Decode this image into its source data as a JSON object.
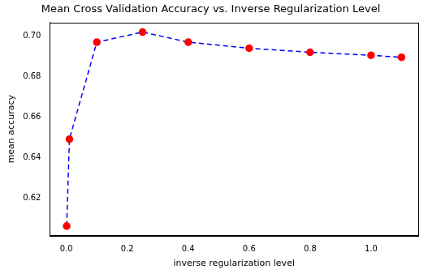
{
  "chart_data": {
    "type": "line",
    "title": "Mean Cross Validation Accuracy vs. Inverse Regularization Level",
    "x_label": "inverse regularization level",
    "y_label": "mean accuracy",
    "x": [
      0.001,
      0.01,
      0.1,
      0.25,
      0.4,
      0.6,
      0.8,
      1.0,
      1.1
    ],
    "values": [
      0.606,
      0.649,
      0.697,
      0.702,
      0.697,
      0.694,
      0.692,
      0.6905,
      0.6895
    ],
    "color": "#0000ff",
    "colors": [
      "#ff0000",
      "#ff0000",
      "#ff0000",
      "#ff0000",
      "#ff0000",
      "#ff0000",
      "#ff0000",
      "#ff0000",
      "#ff0000"
    ],
    "marker": "circle",
    "line_style": "dashed",
    "xlim": [
      -0.054,
      1.155
    ],
    "ylim": [
      0.6012,
      0.7068
    ],
    "xticks": [
      {
        "value": 0,
        "label": "0.0"
      },
      0.2,
      0.4,
      0.6,
      0.8,
      {
        "value": 1,
        "label": "1.0"
      }
    ],
    "yticks": [
      0.62,
      0.64,
      0.66,
      0.68,
      {
        "value": 0.7,
        "label": "0.70"
      }
    ],
    "grid": false
  }
}
